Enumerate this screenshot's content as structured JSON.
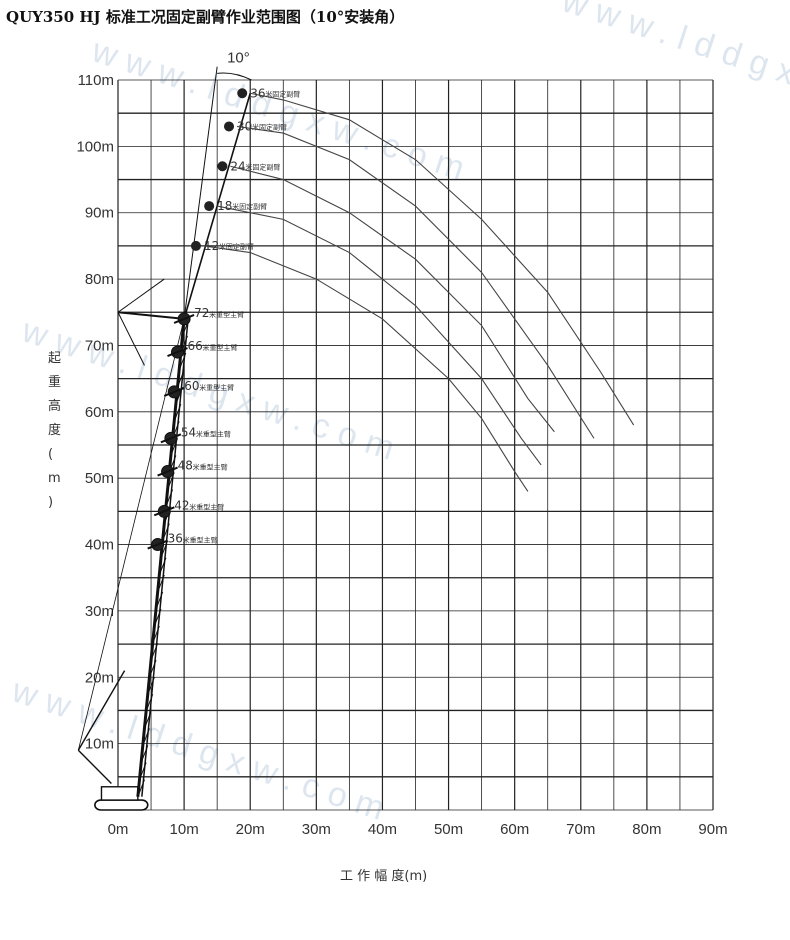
{
  "chart_data": {
    "type": "line",
    "title": "QUY350 HJ 标准工况固定副臂作业范围图（10°安装角）",
    "xlabel": "工 作 幅 度(m)",
    "ylabel": "起 重 高 度 (m)",
    "xlim": [
      0,
      90
    ],
    "ylim": [
      0,
      110
    ],
    "x_ticks": [
      "0m",
      "10m",
      "20m",
      "30m",
      "40m",
      "50m",
      "60m",
      "70m",
      "80m",
      "90m"
    ],
    "y_ticks": [
      "10m",
      "20m",
      "30m",
      "40m",
      "50m",
      "60m",
      "70m",
      "80m",
      "90m",
      "100m",
      "110m"
    ],
    "angle_label": "10°",
    "grid": true,
    "main_booms": [
      {
        "length": "36",
        "text": "米重型主臂",
        "tip": [
          6,
          40
        ]
      },
      {
        "length": "42",
        "text": "米重型主臂",
        "tip": [
          7,
          45
        ]
      },
      {
        "length": "48",
        "text": "米重型主臂",
        "tip": [
          7.5,
          51
        ]
      },
      {
        "length": "54",
        "text": "米重型主臂",
        "tip": [
          8,
          56
        ]
      },
      {
        "length": "60",
        "text": "米重型主臂",
        "tip": [
          8.5,
          63
        ]
      },
      {
        "length": "66",
        "text": "米重型主臂",
        "tip": [
          9,
          69
        ]
      },
      {
        "length": "72",
        "text": "米重型主臂",
        "tip": [
          10,
          74
        ]
      }
    ],
    "series": [
      {
        "name": "12",
        "text": "米固定副臂",
        "x": [
          13,
          20,
          30,
          40,
          50,
          55,
          60,
          62
        ],
        "y": [
          85,
          84,
          80,
          74,
          65,
          59,
          51,
          48
        ]
      },
      {
        "name": "18",
        "text": "米固定副臂",
        "x": [
          15,
          25,
          35,
          45,
          55,
          61,
          64
        ],
        "y": [
          91,
          89,
          84,
          76,
          65,
          56,
          52
        ]
      },
      {
        "name": "24",
        "text": "米固定副臂",
        "x": [
          17,
          25,
          35,
          45,
          55,
          62,
          66
        ],
        "y": [
          97,
          95,
          90,
          83,
          73,
          62,
          57
        ]
      },
      {
        "name": "30",
        "text": "米固定副臂",
        "x": [
          18,
          25,
          35,
          45,
          55,
          65,
          72
        ],
        "y": [
          103,
          102,
          98,
          91,
          81,
          67,
          56
        ]
      },
      {
        "name": "36",
        "text": "米固定副臂",
        "x": [
          20,
          25,
          35,
          45,
          55,
          65,
          73,
          78
        ],
        "y": [
          108,
          107,
          104,
          98,
          89,
          78,
          66,
          58
        ]
      }
    ],
    "watermarks": [
      "www.lddgxw.com",
      "www.lddgxw.com",
      "www.lddgxw.com",
      "www.lddgxw.com"
    ]
  }
}
